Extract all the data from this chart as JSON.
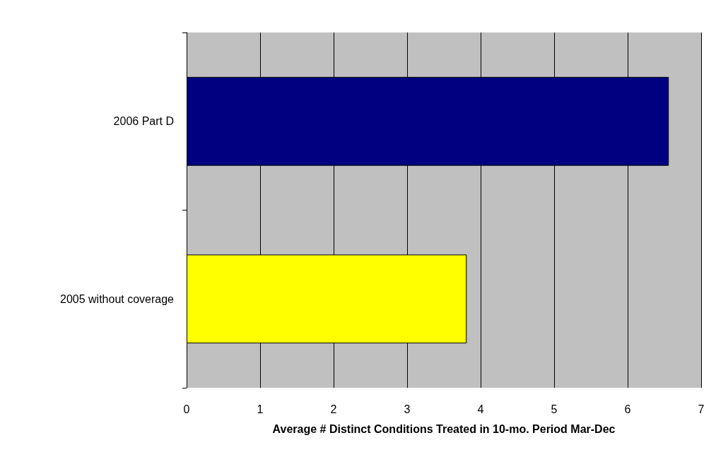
{
  "chart_data": {
    "type": "bar",
    "orientation": "horizontal",
    "xlabel": "Average # Distinct Conditions Treated in 10-mo. Period Mar-Dec",
    "categories": [
      "2006 Part D",
      "2005 without coverage"
    ],
    "colors": [
      "#000080",
      "#ffff00"
    ],
    "values": [
      6.56,
      3.81
    ],
    "xlim": [
      0,
      7
    ],
    "xticks": [
      0,
      1,
      2,
      3,
      4,
      5,
      6,
      7
    ],
    "grid": "x"
  }
}
